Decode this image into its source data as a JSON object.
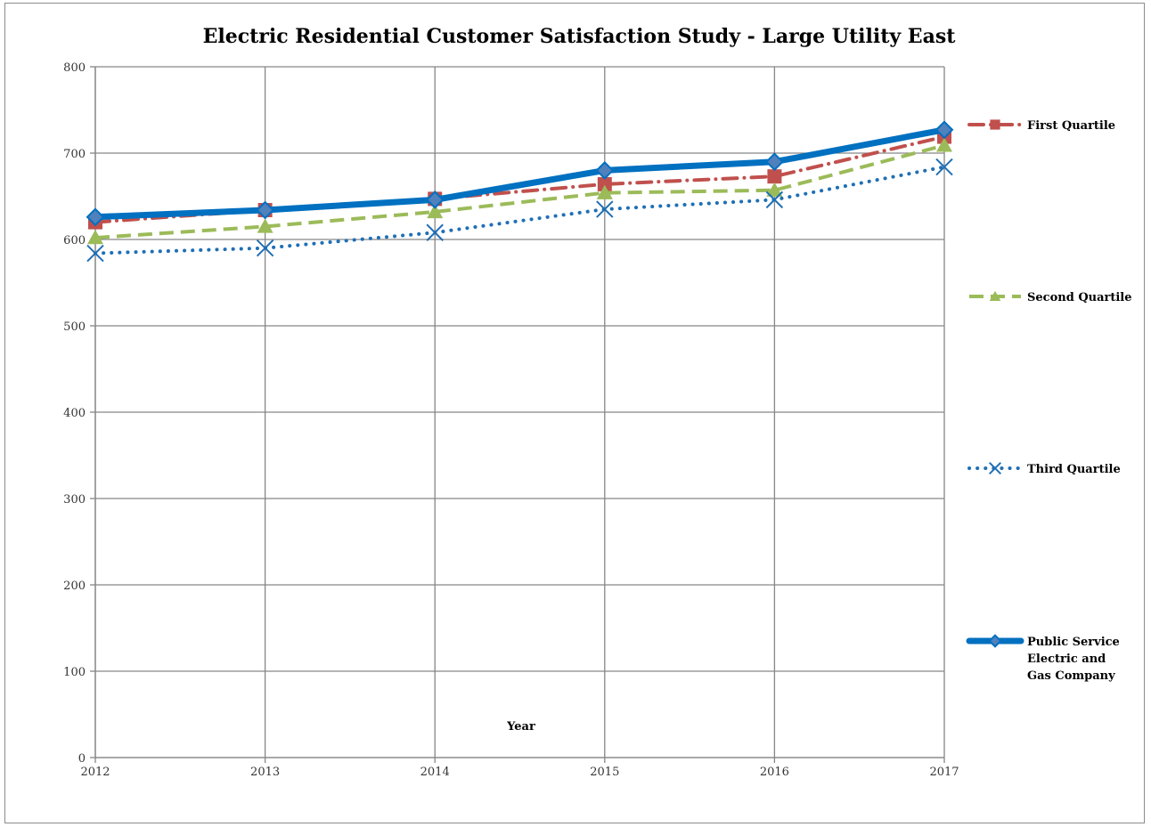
{
  "chart_data": {
    "type": "line",
    "title": "Electric Residential Customer Satisfaction Study - Large Utility East",
    "xlabel": "Year",
    "ylabel": "",
    "x": [
      "2012",
      "2013",
      "2014",
      "2015",
      "2016",
      "2017"
    ],
    "ylim": [
      0,
      800
    ],
    "yticks": [
      0,
      100,
      200,
      300,
      400,
      500,
      600,
      700,
      800
    ],
    "grid": true,
    "legend_position": "right",
    "series": [
      {
        "name": "First Quartile",
        "values": [
          620,
          634,
          647,
          664,
          673,
          719
        ],
        "color": "#c0504d",
        "dash": "dash-dot",
        "marker": "square"
      },
      {
        "name": "Second Quartile",
        "values": [
          602,
          615,
          632,
          654,
          657,
          709
        ],
        "color": "#9bbb59",
        "dash": "dash",
        "marker": "triangle"
      },
      {
        "name": "Third Quartile",
        "values": [
          584,
          590,
          608,
          635,
          646,
          684
        ],
        "color": "#1f6fb5",
        "dash": "dot",
        "marker": "x"
      },
      {
        "name": "Public Service Electric and Gas Company",
        "values": [
          626,
          634,
          646,
          680,
          690,
          727
        ],
        "color": "#0070c0",
        "dash": "solid",
        "marker": "diamond"
      }
    ],
    "legend_lines": [
      [
        "First Quartile"
      ],
      [
        "Second Quartile"
      ],
      [
        "Third Quartile"
      ],
      [
        "Public Service",
        "Electric and",
        "Gas Company"
      ]
    ]
  }
}
